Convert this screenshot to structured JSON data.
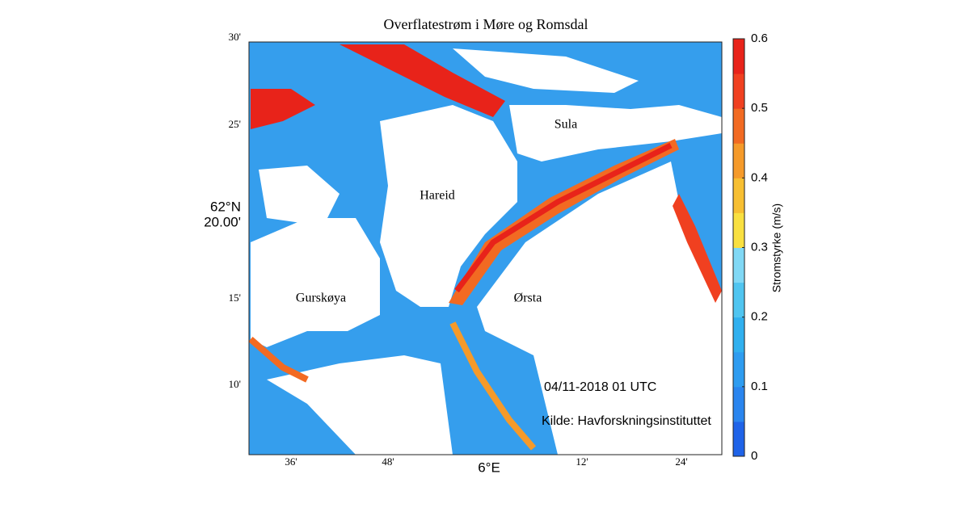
{
  "map": {
    "title": "Overflatestrøm i Møre og Romsdal",
    "lat_labels": [
      "30'",
      "25'",
      "62°N",
      "20.00'",
      "15'",
      "10'"
    ],
    "lon_labels": [
      "36'",
      "48'",
      "6°E",
      "12'",
      "24'"
    ],
    "places": [
      "Hareid",
      "Sula",
      "Gurskøya",
      "Ørsta"
    ],
    "timestamp": "04/11-2018 01 UTC",
    "source": "Kilde: Havforskningsinstituttet"
  },
  "colorbar": {
    "label": "Stromstyrke (m/s)",
    "lim": [
      0,
      0.6
    ],
    "ticks": [
      0,
      0.1,
      0.2,
      0.3,
      0.4,
      0.5,
      0.6
    ],
    "colors": [
      "#1f63e8",
      "#2a85ee",
      "#2e9cf0",
      "#30b0ef",
      "#50c5f0",
      "#80d8f5",
      "#f9e040",
      "#f7bf32",
      "#f59a2a",
      "#f26a22",
      "#f04020",
      "#e8231a"
    ]
  }
}
